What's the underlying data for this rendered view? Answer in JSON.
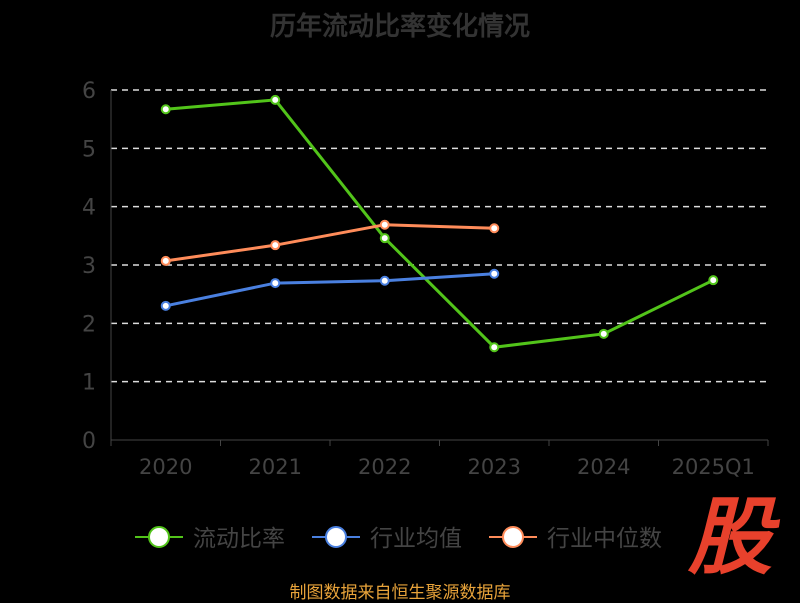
{
  "chart_data": {
    "type": "line",
    "title": "历年流动比率变化情况",
    "categories": [
      "2020",
      "2021",
      "2022",
      "2023",
      "2024",
      "2025Q1"
    ],
    "ylim": [
      0,
      6
    ],
    "yticks": [
      "0",
      "1",
      "2",
      "3",
      "4",
      "5",
      "6"
    ],
    "grid": true,
    "legend_position": "bottom",
    "series": [
      {
        "name": "流动比率",
        "color": "#52c41a",
        "values": [
          5.67,
          5.83,
          3.46,
          1.59,
          1.82,
          2.74
        ]
      },
      {
        "name": "行业均值",
        "color": "#4a80e0",
        "values": [
          2.3,
          2.69,
          2.73,
          2.85,
          null,
          null
        ]
      },
      {
        "name": "行业中位数",
        "color": "#ff8c5a",
        "values": [
          3.07,
          3.34,
          3.69,
          3.63,
          null,
          null
        ]
      }
    ]
  },
  "footer": "制图数据来自恒生聚源数据库",
  "logo_text": "股"
}
